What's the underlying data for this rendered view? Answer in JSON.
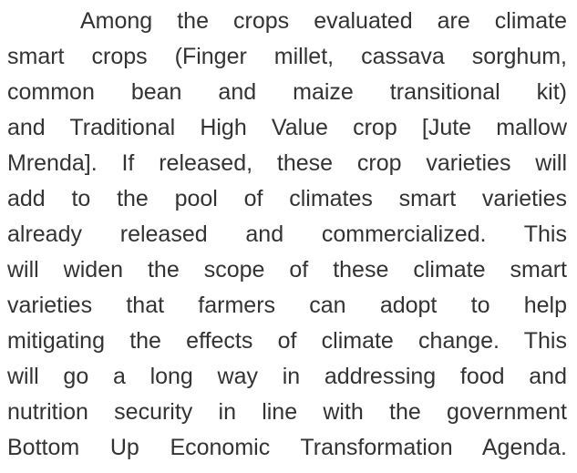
{
  "paragraph": {
    "lines": [
      "Among the crops evaluated are climate",
      "smart crops (Finger millet, cassava sorghum,",
      "common bean and maize transitional kit)",
      "and Traditional High Value crop [Jute mallow",
      "Mrenda]. If released, these crop varieties will",
      "add to the pool of climates smart varieties",
      "already released and commercialized. This",
      "will widen the scope of these climate smart",
      "varieties that farmers can adopt to help",
      "mitigating the effects of climate change. This",
      "will go a long way in addressing food and",
      "nutrition security in line with the government",
      "Bottom Up Economic Transformation Agenda."
    ]
  }
}
